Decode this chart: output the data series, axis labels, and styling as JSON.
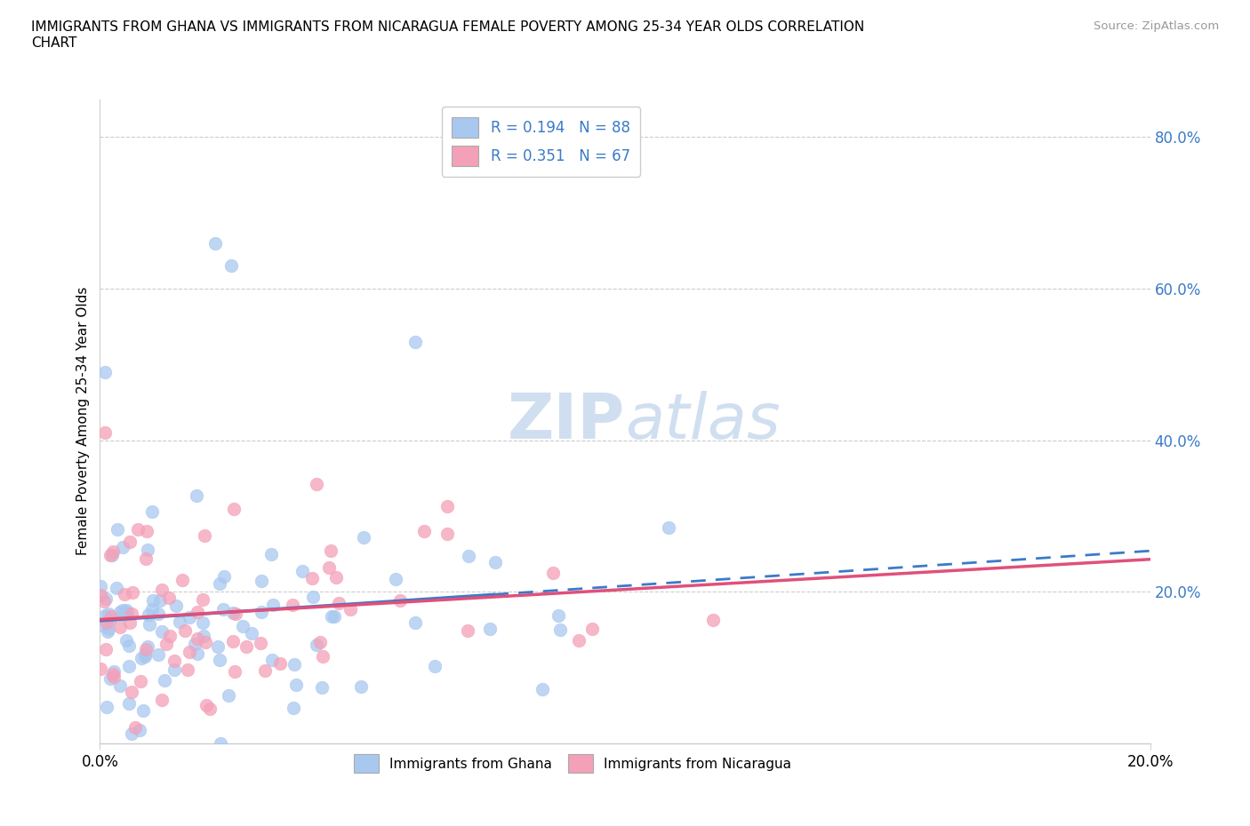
{
  "title": "IMMIGRANTS FROM GHANA VS IMMIGRANTS FROM NICARAGUA FEMALE POVERTY AMONG 25-34 YEAR OLDS CORRELATION\nCHART",
  "source": "Source: ZipAtlas.com",
  "ylabel": "Female Poverty Among 25-34 Year Olds",
  "xlim": [
    0.0,
    0.2
  ],
  "ylim": [
    0.0,
    0.85
  ],
  "ytick_vals": [
    0.0,
    0.2,
    0.4,
    0.6,
    0.8
  ],
  "ytick_labels": [
    "",
    "20.0%",
    "40.0%",
    "60.0%",
    "80.0%"
  ],
  "ghana_R": 0.194,
  "ghana_N": 88,
  "nicaragua_R": 0.351,
  "nicaragua_N": 67,
  "ghana_color": "#a8c8f0",
  "nicaragua_color": "#f4a0b8",
  "ghana_line_color": "#3a7bc8",
  "nicaragua_line_color": "#e0507a",
  "watermark_color": "#d0dff0",
  "legend_text_color": "#3a7bc8",
  "ytick_color": "#3a7bc8",
  "ghana_scatter_seed": 42,
  "nicaragua_scatter_seed": 99
}
